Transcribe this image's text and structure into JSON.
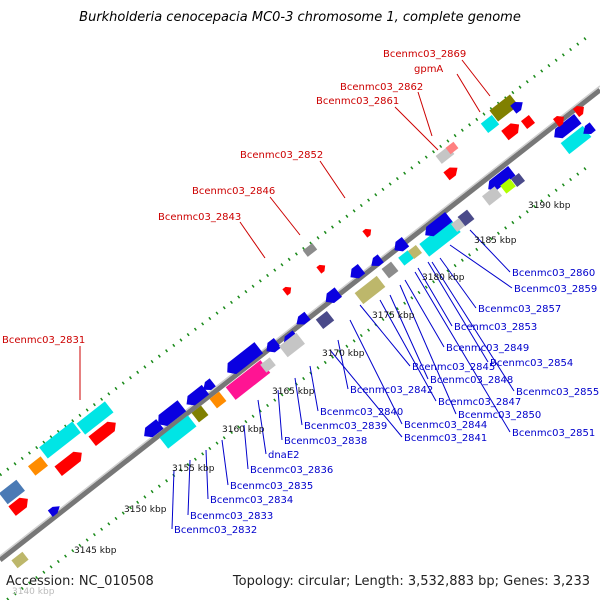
{
  "title": "Burkholderia cenocepacia MC0-3 chromosome 1, complete genome",
  "footer": {
    "accession": "Accession: NC_010508",
    "topology": "Topology: circular; Length: 3,532,883 bp; Genes: 3,233"
  },
  "ticks": [
    "3145 kbp",
    "3150 kbp",
    "3155 kbp",
    "3160 kbp",
    "3165 kbp",
    "3170 kbp",
    "3175 kbp",
    "3180 kbp",
    "3185 kbp",
    "3190 kbp"
  ],
  "extra_tick": "3140 kbp",
  "labels_above": [
    "Bcenmc03_2831",
    "Bcenmc03_2843",
    "Bcenmc03_2846",
    "Bcenmc03_2852",
    "Bcenmc03_2861",
    "Bcenmc03_2862",
    "gpmA",
    "Bcenmc03_2869"
  ],
  "labels_below": [
    "Bcenmc03_2832",
    "Bcenmc03_2833",
    "Bcenmc03_2834",
    "Bcenmc03_2835",
    "Bcenmc03_2836",
    "dnaE2",
    "Bcenmc03_2838",
    "Bcenmc03_2839",
    "Bcenmc03_2840",
    "Bcenmc03_2841",
    "Bcenmc03_2842",
    "Bcenmc03_2844",
    "Bcenmc03_2845",
    "Bcenmc03_2847",
    "Bcenmc03_2848",
    "Bcenmc03_2849",
    "Bcenmc03_2850",
    "Bcenmc03_2851",
    "Bcenmc03_2853",
    "Bcenmc03_2854",
    "Bcenmc03_2855",
    "Bcenmc03_2857",
    "Bcenmc03_2859",
    "Bcenmc03_2860"
  ],
  "colors": {
    "label_above": "#cc0000",
    "label_below": "#0000cc",
    "blue": "#0a00e0",
    "red": "#ff0000",
    "cyan": "#00e5e5",
    "magenta": "#ff1493",
    "orange": "#ff8c00",
    "olive": "#808000",
    "tan": "#bdb76b",
    "gray": "#8c8c8c",
    "green_dot": "#1a8a1a",
    "backbone": "#888888"
  }
}
